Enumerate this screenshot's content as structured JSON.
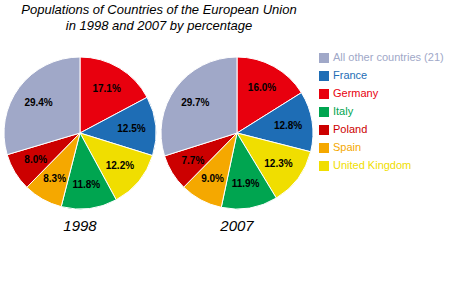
{
  "chart_data": {
    "type": "pie",
    "title": "Populations of Countries of the European Union\nin 1998 and 2007 by percentage",
    "categories": [
      "Germany",
      "France",
      "United Kingdom",
      "Italy",
      "Spain",
      "Poland",
      "All other countries (21)"
    ],
    "series": [
      {
        "name": "1998",
        "values": [
          17.1,
          12.5,
          12.2,
          11.8,
          8.3,
          8.0,
          29.4
        ],
        "value_labels": [
          "17.1%",
          "12.5%",
          "12.2%",
          "11.8%",
          "8.3%",
          "8.0%",
          "29.4%"
        ]
      },
      {
        "name": "2007",
        "values": [
          16.0,
          12.8,
          12.3,
          11.9,
          9.0,
          7.7,
          29.7
        ],
        "value_labels": [
          "16.0%",
          "12.8%",
          "12.3%",
          "11.9%",
          "9.0%",
          "7.7%",
          "29.7%"
        ]
      }
    ],
    "colors": [
      "#e8000e",
      "#1e6db5",
      "#f0de00",
      "#00a550",
      "#f5a800",
      "#cc0000",
      "#a0a8c8"
    ],
    "data_labels": true,
    "legend": "right"
  }
}
